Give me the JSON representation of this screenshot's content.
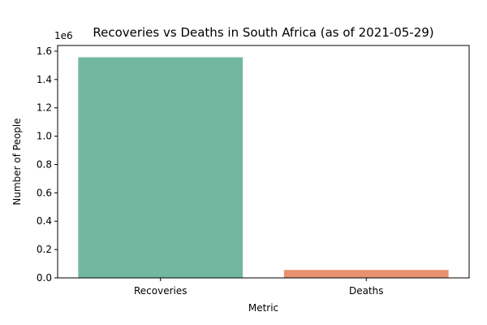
{
  "chart_data": {
    "type": "bar",
    "title": "Recoveries vs Deaths in South Africa (as of 2021-05-29)",
    "xlabel": "Metric",
    "ylabel": "Number of People",
    "categories": [
      "Recoveries",
      "Deaths"
    ],
    "values": [
      1557000,
      56000
    ],
    "colors": [
      "#73b7a1",
      "#e8916f"
    ],
    "ylim": [
      0,
      1640000
    ],
    "y_ticks": [
      0,
      200000,
      400000,
      600000,
      800000,
      1000000,
      1200000,
      1400000,
      1600000
    ],
    "y_tick_labels": [
      "0.0",
      "0.2",
      "0.4",
      "0.6",
      "0.8",
      "1.0",
      "1.2",
      "1.4",
      "1.6"
    ],
    "y_offset_label": "1e6",
    "grid": false,
    "legend": "none"
  }
}
